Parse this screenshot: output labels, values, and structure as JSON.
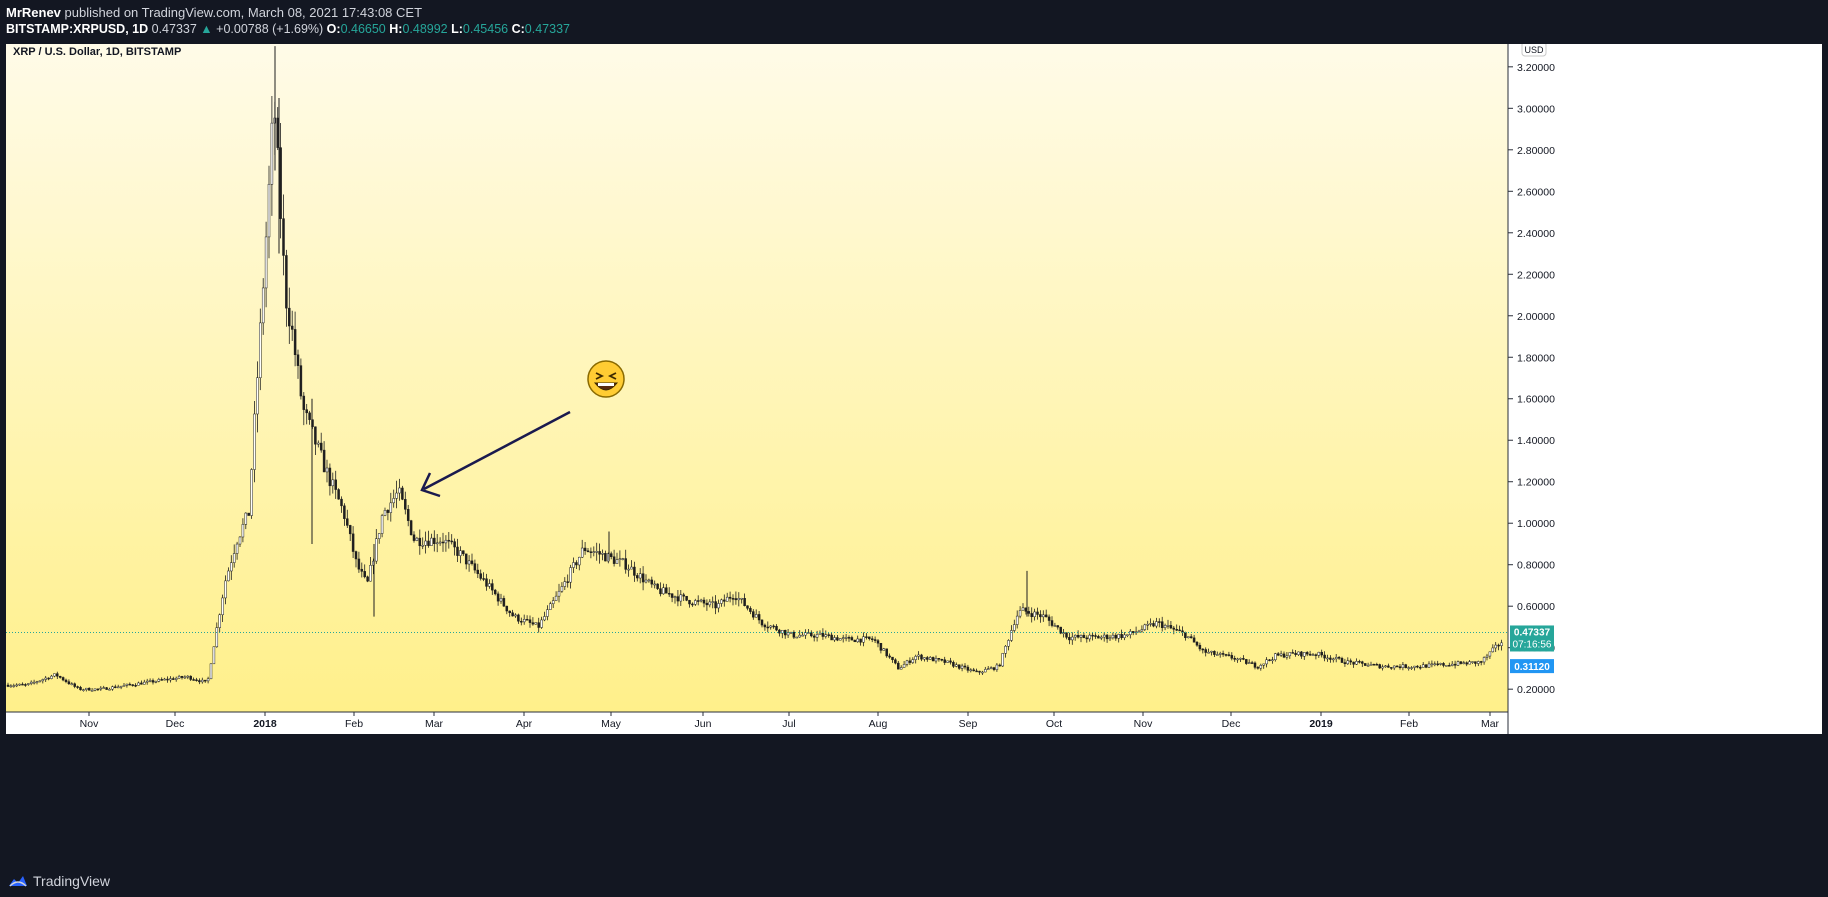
{
  "header": {
    "author": "MrRenev",
    "published_text": "published on TradingView.com, March 08, 2021 17:43:08 CET",
    "symbol": "BITSTAMP:XRPUSD, 1D",
    "last": "0.47337",
    "change": "+0.00788 (+1.69%)",
    "o_label": "O:",
    "o": "0.46650",
    "h_label": "H:",
    "h": "0.48992",
    "l_label": "L:",
    "l": "0.45456",
    "c_label": "C:",
    "c": "0.47337",
    "up_arrow": "▲"
  },
  "footer": {
    "brand": "TradingView",
    "logo_icon": "tradingview-logo-icon"
  },
  "colors": {
    "up": "#26a69a",
    "down": "#ef5350",
    "bg_top": "#fffbe8",
    "bg_bottom": "#fff08a",
    "annotation": "#1a1a4e"
  },
  "chart_data": {
    "type": "line",
    "title": "XRP / U.S. Dollar, 1D, BITSTAMP",
    "currency_label": "USD",
    "ylim": [
      0.09,
      3.31
    ],
    "y_ticks": [
      "3.20000",
      "3.00000",
      "2.80000",
      "2.60000",
      "2.40000",
      "2.20000",
      "2.00000",
      "1.80000",
      "1.60000",
      "1.40000",
      "1.20000",
      "1.00000",
      "0.80000",
      "0.60000",
      "0.40000",
      "0.20000"
    ],
    "x_labels": [
      "Nov",
      "Dec",
      "2018",
      "Feb",
      "Mar",
      "Apr",
      "May",
      "Jun",
      "Jul",
      "Aug",
      "Sep",
      "Oct",
      "Nov",
      "Dec",
      "2019",
      "Feb",
      "Mar"
    ],
    "x_label_index": [
      0,
      1,
      2,
      3,
      4,
      5,
      6,
      7,
      8,
      9,
      10,
      11,
      12,
      13,
      14,
      15,
      16
    ],
    "series": [
      {
        "x": [
          "Oct 10",
          "Oct 20",
          "Oct 28",
          "Nov 5",
          "Nov 15",
          "Nov 25",
          "Dec 5",
          "Dec 12",
          "Dec 14",
          "Dec 18",
          "Dec 22",
          "Dec 26",
          "Dec 30",
          "Jan 3",
          "Jan 4",
          "Jan 8",
          "Jan 10",
          "Jan 14",
          "Jan 18",
          "Jan 22",
          "Jan 28",
          "Feb 2",
          "Feb 6",
          "Feb 12",
          "Feb 18",
          "Feb 24",
          "Mar 4",
          "Mar 10",
          "Mar 18",
          "Mar 28",
          "Apr 6",
          "Apr 14",
          "Apr 22",
          "Apr 28",
          "May 6",
          "May 16",
          "May 26",
          "Jun 6",
          "Jun 12",
          "Jun 22",
          "Jul 2",
          "Jul 12",
          "Jul 20",
          "Jul 30",
          "Aug 8",
          "Aug 14",
          "Aug 24",
          "Sep 4",
          "Sep 12",
          "Sep 18",
          "Sep 20",
          "Sep 28",
          "Oct 6",
          "Oct 16",
          "Oct 26",
          "Nov 6",
          "Nov 16",
          "Nov 22",
          "Dec 2",
          "Dec 10",
          "Dec 16",
          "Dec 22",
          "Dec 30",
          "Jan 10",
          "Jan 22",
          "Feb 4",
          "Feb 16",
          "Feb 28",
          "Mar 8"
        ],
        "close": [
          0.22,
          0.27,
          0.2,
          0.2,
          0.22,
          0.24,
          0.26,
          0.23,
          0.4,
          0.72,
          0.92,
          1.05,
          1.95,
          2.75,
          3.05,
          2.1,
          1.95,
          1.55,
          1.4,
          1.25,
          1.05,
          0.8,
          0.7,
          1.05,
          1.15,
          0.92,
          0.92,
          0.85,
          0.72,
          0.55,
          0.5,
          0.68,
          0.88,
          0.85,
          0.8,
          0.68,
          0.63,
          0.6,
          0.66,
          0.52,
          0.46,
          0.46,
          0.44,
          0.44,
          0.3,
          0.36,
          0.33,
          0.28,
          0.31,
          0.55,
          0.58,
          0.55,
          0.45,
          0.45,
          0.46,
          0.52,
          0.46,
          0.38,
          0.35,
          0.31,
          0.36,
          0.37,
          0.37,
          0.33,
          0.31,
          0.31,
          0.32,
          0.33,
          0.47
        ]
      }
    ],
    "last_price_label": "0.47337",
    "countdown_label": "07:16:56",
    "marker_price_label": "0.31120",
    "annotation_emoji": "😆"
  }
}
